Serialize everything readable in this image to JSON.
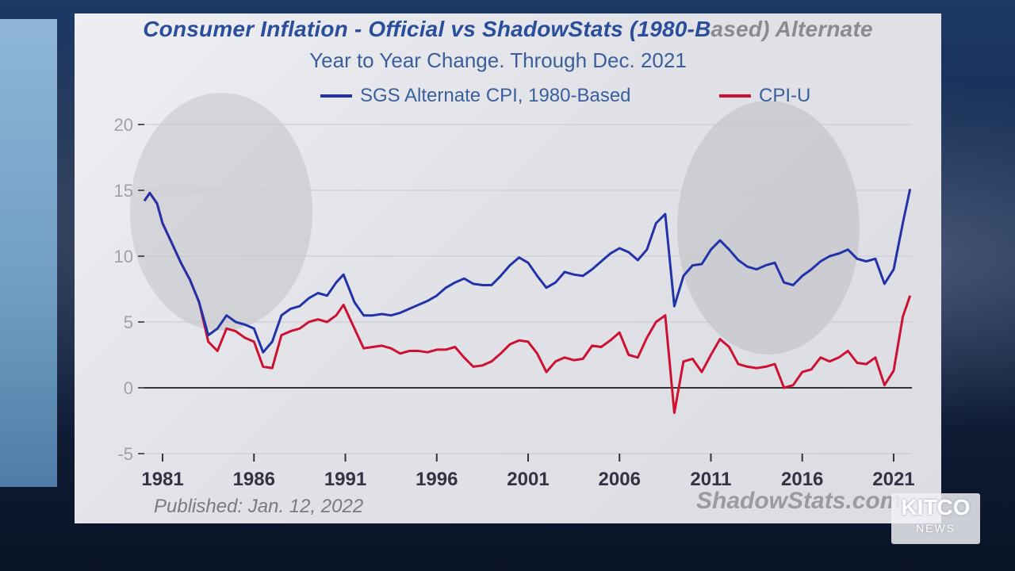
{
  "title": {
    "part1": "Consumer Inflation - Official vs ShadowStats (1980-B",
    "part2": "ased) Alternate"
  },
  "subtitle": "Year to Year Change. Through Dec. 2021",
  "published": "Published: Jan. 12, 2022",
  "watermark": "ShadowStats.com",
  "logo": {
    "main": "KITCO",
    "sub": "NEWS"
  },
  "colors": {
    "sgs": "#2233aa",
    "cpi": "#cc1133",
    "accent": "#2a4e9a"
  },
  "chart_data": {
    "type": "line",
    "title": "Consumer Inflation - Official vs ShadowStats (1980-Based) Alternate",
    "subtitle": "Year to Year Change. Through Dec. 2021",
    "xlabel": "",
    "ylabel": "",
    "xlim": [
      1980,
      2022
    ],
    "ylim": [
      -5,
      20
    ],
    "yticks": [
      "20",
      "15",
      "10",
      "5",
      "0",
      "-5"
    ],
    "xticks": [
      "1981",
      "1986",
      "1991",
      "1996",
      "2001",
      "2006",
      "2011",
      "2016",
      "2021"
    ],
    "legend_position": "top",
    "grid": true,
    "series": [
      {
        "name": "SGS Alternate CPI, 1980-Based",
        "color": "#2233aa",
        "x": [
          1980.0,
          1980.3,
          1980.7,
          1981.0,
          1981.5,
          1982.0,
          1982.5,
          1983.0,
          1983.5,
          1984.0,
          1984.5,
          1985.0,
          1985.5,
          1986.0,
          1986.5,
          1987.0,
          1987.5,
          1988.0,
          1988.5,
          1989.0,
          1989.5,
          1990.0,
          1990.5,
          1990.9,
          1991.5,
          1992.0,
          1992.5,
          1993.0,
          1993.5,
          1994.0,
          1994.5,
          1995.0,
          1995.5,
          1996.0,
          1996.5,
          1997.0,
          1997.5,
          1998.0,
          1998.5,
          1999.0,
          1999.5,
          2000.0,
          2000.5,
          2001.0,
          2001.5,
          2002.0,
          2002.5,
          2003.0,
          2003.5,
          2004.0,
          2004.5,
          2005.0,
          2005.5,
          2006.0,
          2006.5,
          2007.0,
          2007.5,
          2008.0,
          2008.5,
          2009.0,
          2009.5,
          2010.0,
          2010.5,
          2011.0,
          2011.5,
          2012.0,
          2012.5,
          2013.0,
          2013.5,
          2014.0,
          2014.5,
          2015.0,
          2015.5,
          2016.0,
          2016.5,
          2017.0,
          2017.5,
          2018.0,
          2018.5,
          2019.0,
          2019.5,
          2020.0,
          2020.5,
          2021.0,
          2021.5,
          2021.9
        ],
        "values": [
          14.2,
          14.8,
          14.0,
          12.5,
          11.0,
          9.5,
          8.2,
          6.5,
          4.0,
          4.5,
          5.5,
          5.0,
          4.8,
          4.5,
          2.7,
          3.5,
          5.5,
          6.0,
          6.2,
          6.8,
          7.2,
          7.0,
          8.0,
          8.6,
          6.5,
          5.5,
          5.5,
          5.6,
          5.5,
          5.7,
          6.0,
          6.3,
          6.6,
          7.0,
          7.6,
          8.0,
          8.3,
          7.9,
          7.8,
          7.8,
          8.5,
          9.3,
          9.9,
          9.5,
          8.5,
          7.6,
          8.0,
          8.8,
          8.6,
          8.5,
          9.0,
          9.6,
          10.2,
          10.6,
          10.3,
          9.7,
          10.5,
          12.5,
          13.2,
          6.2,
          8.5,
          9.3,
          9.4,
          10.5,
          11.2,
          10.5,
          9.7,
          9.2,
          9.0,
          9.3,
          9.5,
          8.0,
          7.8,
          8.5,
          9.0,
          9.6,
          10.0,
          10.2,
          10.5,
          9.8,
          9.6,
          9.8,
          7.9,
          9.0,
          12.5,
          15.1
        ]
      },
      {
        "name": "CPI-U",
        "color": "#cc1133",
        "x": [
          1980.0,
          1980.3,
          1980.7,
          1981.0,
          1981.5,
          1982.0,
          1982.5,
          1983.0,
          1983.5,
          1984.0,
          1984.5,
          1985.0,
          1985.5,
          1986.0,
          1986.5,
          1987.0,
          1987.5,
          1988.0,
          1988.5,
          1989.0,
          1989.5,
          1990.0,
          1990.5,
          1990.9,
          1991.5,
          1992.0,
          1992.5,
          1993.0,
          1993.5,
          1994.0,
          1994.5,
          1995.0,
          1995.5,
          1996.0,
          1996.5,
          1997.0,
          1997.5,
          1998.0,
          1998.5,
          1999.0,
          1999.5,
          2000.0,
          2000.5,
          2001.0,
          2001.5,
          2002.0,
          2002.5,
          2003.0,
          2003.5,
          2004.0,
          2004.5,
          2005.0,
          2005.5,
          2006.0,
          2006.5,
          2007.0,
          2007.5,
          2008.0,
          2008.5,
          2009.0,
          2009.5,
          2010.0,
          2010.5,
          2011.0,
          2011.5,
          2012.0,
          2012.5,
          2013.0,
          2013.5,
          2014.0,
          2014.5,
          2015.0,
          2015.5,
          2016.0,
          2016.5,
          2017.0,
          2017.5,
          2018.0,
          2018.5,
          2019.0,
          2019.5,
          2020.0,
          2020.5,
          2021.0,
          2021.5,
          2021.9
        ],
        "values": [
          14.2,
          14.8,
          14.0,
          12.5,
          11.0,
          9.5,
          8.2,
          6.5,
          3.5,
          2.8,
          4.5,
          4.3,
          3.8,
          3.5,
          1.6,
          1.5,
          4.0,
          4.3,
          4.5,
          5.0,
          5.2,
          5.0,
          5.5,
          6.3,
          4.5,
          3.0,
          3.1,
          3.2,
          3.0,
          2.6,
          2.8,
          2.8,
          2.7,
          2.9,
          2.9,
          3.1,
          2.3,
          1.6,
          1.7,
          2.0,
          2.6,
          3.3,
          3.6,
          3.5,
          2.6,
          1.2,
          2.0,
          2.3,
          2.1,
          2.2,
          3.2,
          3.1,
          3.6,
          4.2,
          2.5,
          2.3,
          3.8,
          5.0,
          5.5,
          -1.9,
          2.0,
          2.2,
          1.2,
          2.5,
          3.7,
          3.1,
          1.8,
          1.6,
          1.5,
          1.6,
          1.8,
          0.0,
          0.2,
          1.2,
          1.4,
          2.3,
          2.0,
          2.3,
          2.8,
          1.9,
          1.8,
          2.3,
          0.2,
          1.3,
          5.4,
          7.0
        ]
      }
    ]
  }
}
